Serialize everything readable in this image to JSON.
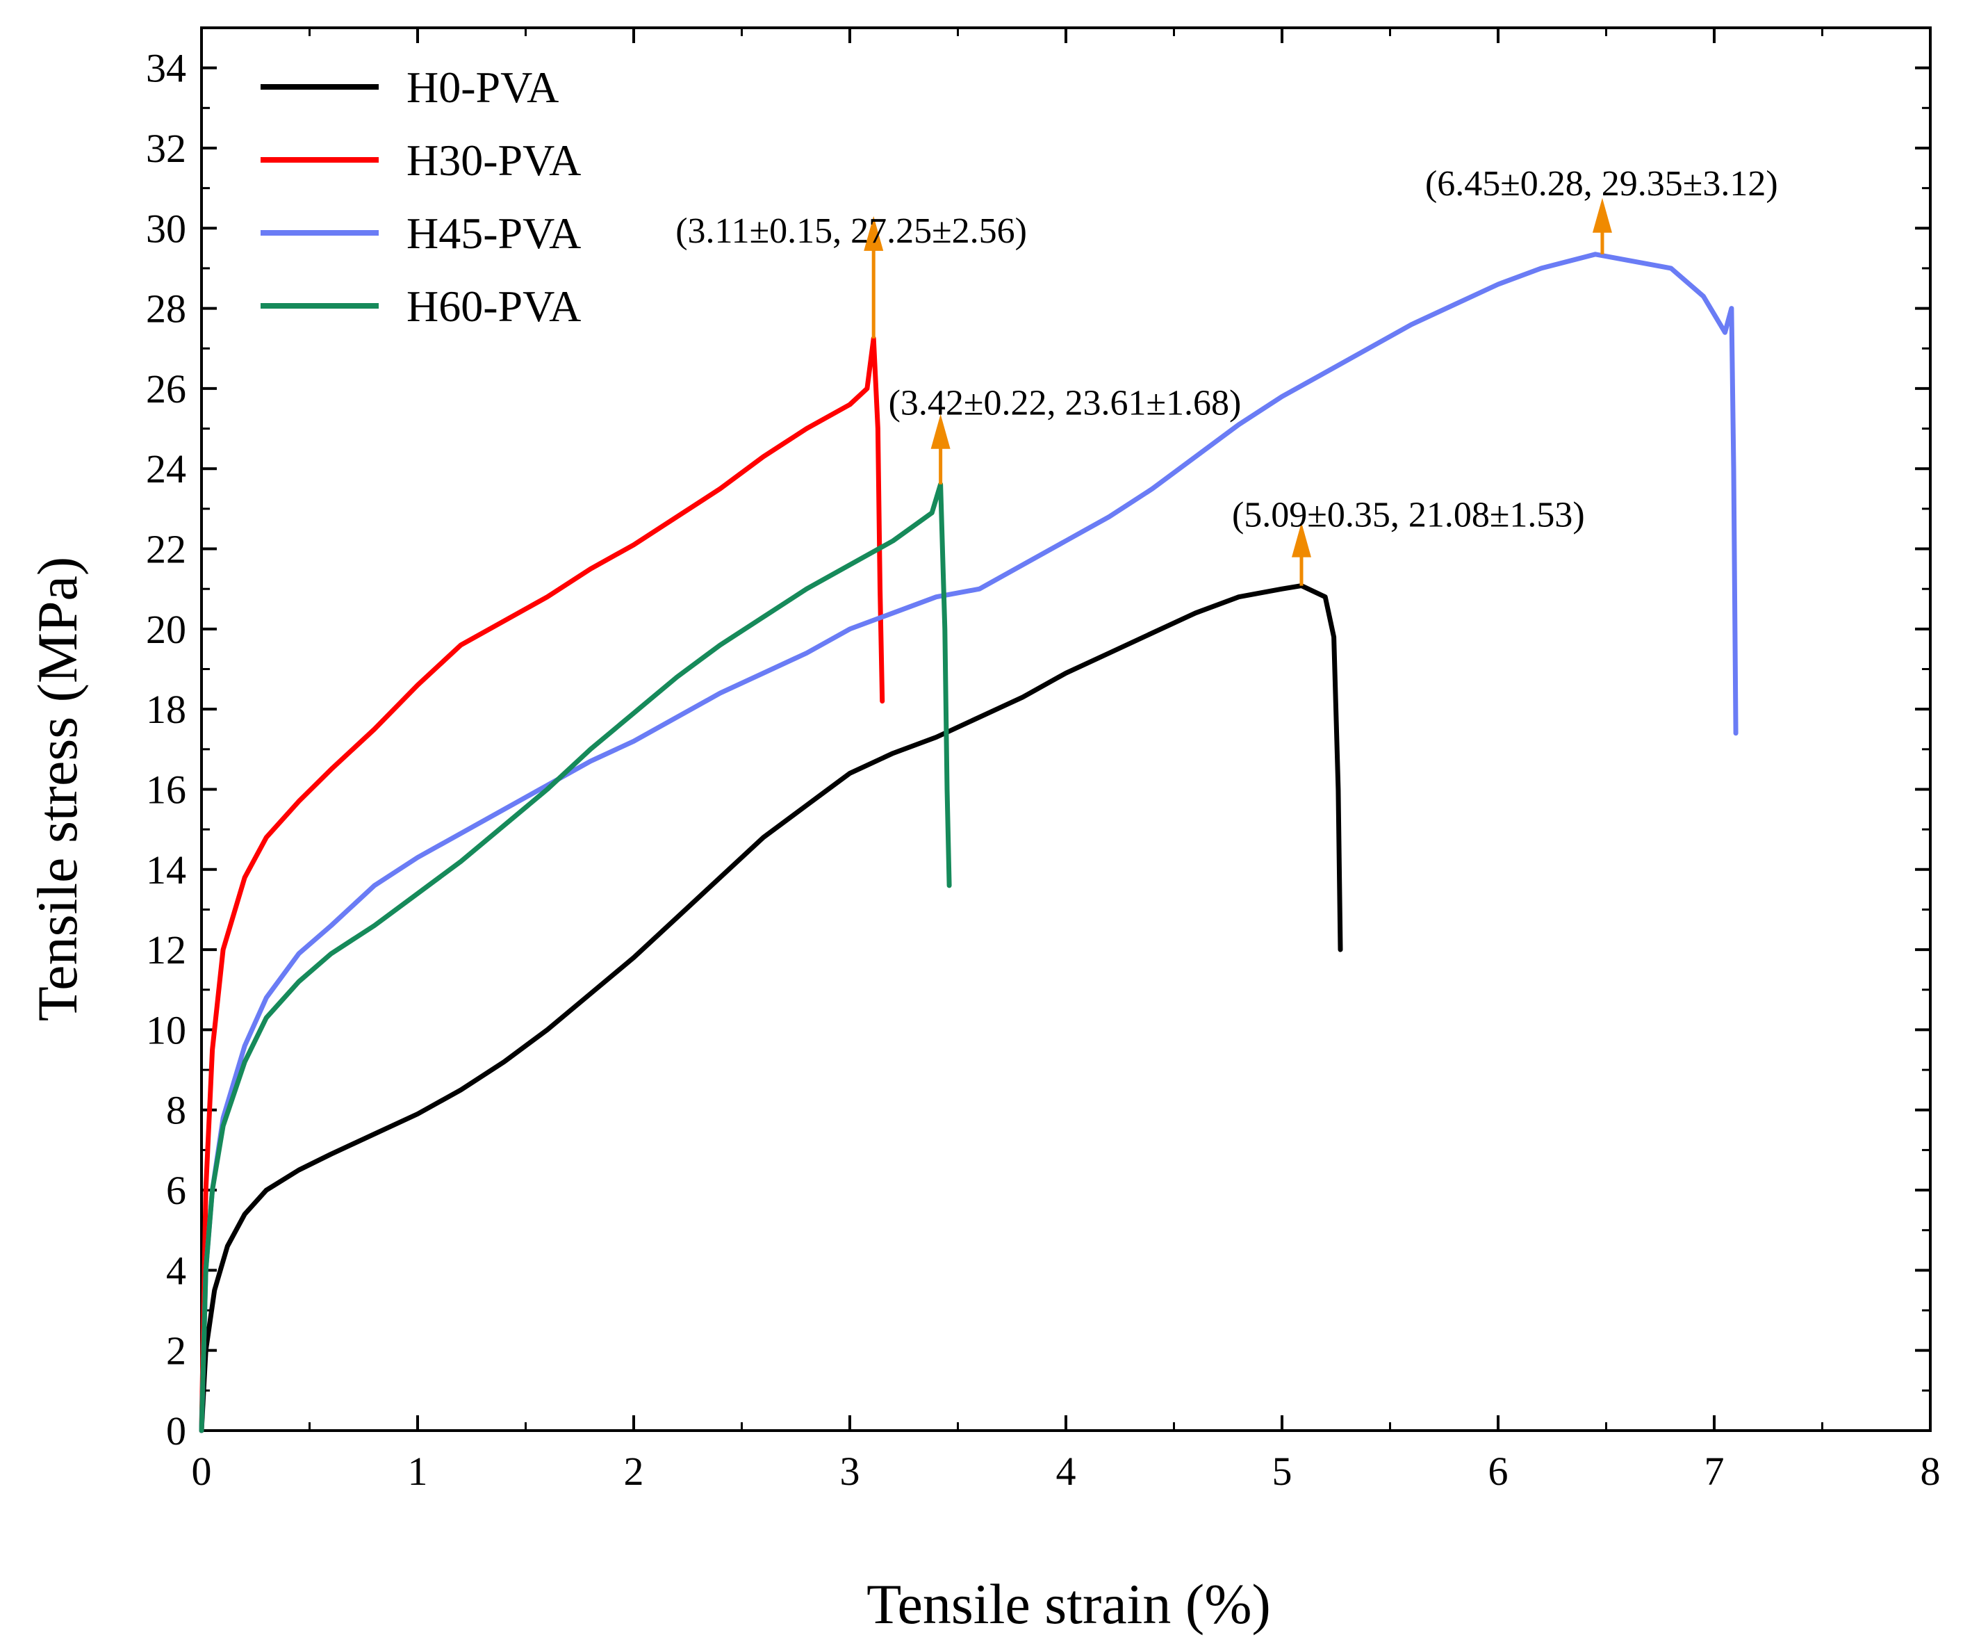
{
  "chart_data": {
    "type": "line",
    "xlabel": "Tensile strain (%)",
    "ylabel": "Tensile stress (MPa)",
    "xlim": [
      0,
      8
    ],
    "ylim": [
      0,
      35
    ],
    "x_ticks": [
      0,
      1,
      2,
      3,
      4,
      5,
      6,
      7,
      8
    ],
    "y_ticks": [
      0,
      2,
      4,
      6,
      8,
      10,
      12,
      14,
      16,
      18,
      20,
      22,
      24,
      26,
      28,
      30,
      32,
      34
    ],
    "grid": false,
    "legend_position": "top-left",
    "series": [
      {
        "name": "H0-PVA",
        "color": "#000000",
        "points": [
          [
            0,
            0
          ],
          [
            0.02,
            2
          ],
          [
            0.06,
            3.5
          ],
          [
            0.12,
            4.6
          ],
          [
            0.2,
            5.4
          ],
          [
            0.3,
            6.0
          ],
          [
            0.45,
            6.5
          ],
          [
            0.6,
            6.9
          ],
          [
            0.8,
            7.4
          ],
          [
            1.0,
            7.9
          ],
          [
            1.2,
            8.5
          ],
          [
            1.4,
            9.2
          ],
          [
            1.6,
            10.0
          ],
          [
            1.8,
            10.9
          ],
          [
            2.0,
            11.8
          ],
          [
            2.2,
            12.8
          ],
          [
            2.4,
            13.8
          ],
          [
            2.6,
            14.8
          ],
          [
            2.8,
            15.6
          ],
          [
            3.0,
            16.4
          ],
          [
            3.2,
            16.9
          ],
          [
            3.4,
            17.3
          ],
          [
            3.6,
            17.8
          ],
          [
            3.8,
            18.3
          ],
          [
            4.0,
            18.9
          ],
          [
            4.2,
            19.4
          ],
          [
            4.4,
            19.9
          ],
          [
            4.6,
            20.4
          ],
          [
            4.8,
            20.8
          ],
          [
            5.0,
            21.0
          ],
          [
            5.09,
            21.08
          ],
          [
            5.2,
            20.8
          ],
          [
            5.24,
            19.8
          ],
          [
            5.26,
            16.0
          ],
          [
            5.27,
            12.0
          ]
        ]
      },
      {
        "name": "H30-PVA",
        "color": "#ff0000",
        "points": [
          [
            0,
            0
          ],
          [
            0.02,
            6
          ],
          [
            0.05,
            9.5
          ],
          [
            0.1,
            12
          ],
          [
            0.2,
            13.8
          ],
          [
            0.3,
            14.8
          ],
          [
            0.45,
            15.7
          ],
          [
            0.6,
            16.5
          ],
          [
            0.8,
            17.5
          ],
          [
            1.0,
            18.6
          ],
          [
            1.2,
            19.6
          ],
          [
            1.4,
            20.2
          ],
          [
            1.6,
            20.8
          ],
          [
            1.8,
            21.5
          ],
          [
            2.0,
            22.1
          ],
          [
            2.2,
            22.8
          ],
          [
            2.4,
            23.5
          ],
          [
            2.6,
            24.3
          ],
          [
            2.8,
            25.0
          ],
          [
            3.0,
            25.6
          ],
          [
            3.08,
            26.0
          ],
          [
            3.11,
            27.25
          ],
          [
            3.13,
            25.0
          ],
          [
            3.14,
            21.0
          ],
          [
            3.15,
            18.2
          ]
        ]
      },
      {
        "name": "H45-PVA",
        "color": "#6a7cf5",
        "points": [
          [
            0,
            0
          ],
          [
            0.02,
            4
          ],
          [
            0.05,
            6
          ],
          [
            0.1,
            7.8
          ],
          [
            0.2,
            9.6
          ],
          [
            0.3,
            10.8
          ],
          [
            0.45,
            11.9
          ],
          [
            0.6,
            12.6
          ],
          [
            0.8,
            13.6
          ],
          [
            1.0,
            14.3
          ],
          [
            1.2,
            14.9
          ],
          [
            1.4,
            15.5
          ],
          [
            1.6,
            16.1
          ],
          [
            1.8,
            16.7
          ],
          [
            2.0,
            17.2
          ],
          [
            2.2,
            17.8
          ],
          [
            2.4,
            18.4
          ],
          [
            2.6,
            18.9
          ],
          [
            2.8,
            19.4
          ],
          [
            3.0,
            20.0
          ],
          [
            3.2,
            20.4
          ],
          [
            3.4,
            20.8
          ],
          [
            3.6,
            21.0
          ],
          [
            3.8,
            21.6
          ],
          [
            4.0,
            22.2
          ],
          [
            4.2,
            22.8
          ],
          [
            4.4,
            23.5
          ],
          [
            4.6,
            24.3
          ],
          [
            4.8,
            25.1
          ],
          [
            5.0,
            25.8
          ],
          [
            5.2,
            26.4
          ],
          [
            5.4,
            27.0
          ],
          [
            5.6,
            27.6
          ],
          [
            5.8,
            28.1
          ],
          [
            6.0,
            28.6
          ],
          [
            6.2,
            29.0
          ],
          [
            6.45,
            29.35
          ],
          [
            6.6,
            29.2
          ],
          [
            6.8,
            29.0
          ],
          [
            6.95,
            28.3
          ],
          [
            7.05,
            27.4
          ],
          [
            7.08,
            28.0
          ],
          [
            7.09,
            24.0
          ],
          [
            7.1,
            17.4
          ]
        ]
      },
      {
        "name": "H60-PVA",
        "color": "#168a5a",
        "points": [
          [
            0,
            0
          ],
          [
            0.02,
            4
          ],
          [
            0.05,
            6
          ],
          [
            0.1,
            7.6
          ],
          [
            0.2,
            9.2
          ],
          [
            0.3,
            10.3
          ],
          [
            0.45,
            11.2
          ],
          [
            0.6,
            11.9
          ],
          [
            0.8,
            12.6
          ],
          [
            1.0,
            13.4
          ],
          [
            1.2,
            14.2
          ],
          [
            1.4,
            15.1
          ],
          [
            1.6,
            16.0
          ],
          [
            1.8,
            17.0
          ],
          [
            2.0,
            17.9
          ],
          [
            2.2,
            18.8
          ],
          [
            2.4,
            19.6
          ],
          [
            2.6,
            20.3
          ],
          [
            2.8,
            21.0
          ],
          [
            3.0,
            21.6
          ],
          [
            3.2,
            22.2
          ],
          [
            3.38,
            22.9
          ],
          [
            3.42,
            23.61
          ],
          [
            3.44,
            20.0
          ],
          [
            3.45,
            16.0
          ],
          [
            3.46,
            13.6
          ]
        ]
      }
    ],
    "annotations": [
      {
        "text": "(3.11±0.15, 27.25±2.56)",
        "x": 3.11,
        "y": 27.25,
        "color": "#f08a00"
      },
      {
        "text": "(3.42±0.22, 23.61±1.68)",
        "x": 3.42,
        "y": 23.61,
        "color": "#f08a00"
      },
      {
        "text": "(5.09±0.35, 21.08±1.53)",
        "x": 5.09,
        "y": 21.08,
        "color": "#f08a00"
      },
      {
        "text": "(6.45±0.28, 29.35±3.12)",
        "x": 6.45,
        "y": 29.35,
        "color": "#f08a00"
      }
    ]
  }
}
